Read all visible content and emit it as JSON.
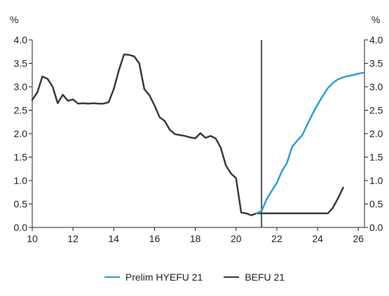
{
  "chart_data": {
    "type": "line",
    "title": "",
    "xlabel": "",
    "ylabel_left": "%",
    "ylabel_right": "%",
    "xlim": [
      10,
      26.3
    ],
    "ylim": [
      0,
      4
    ],
    "x_ticks": [
      10,
      12,
      14,
      16,
      18,
      20,
      22,
      24,
      26
    ],
    "y_ticks": [
      0.0,
      0.5,
      1.0,
      1.5,
      2.0,
      2.5,
      3.0,
      3.5,
      4.0
    ],
    "x_tick_labels": [
      "10",
      "12",
      "14",
      "16",
      "18",
      "20",
      "22",
      "24",
      "26"
    ],
    "y_tick_labels": [
      "0.0",
      "0.5",
      "1.0",
      "1.5",
      "2.0",
      "2.5",
      "3.0",
      "3.5",
      "4.0"
    ],
    "grid": false,
    "vertical_marker_x": 21.25,
    "legend_position": "bottom-center",
    "series": [
      {
        "name": "Prelim HYEFU 21",
        "color": "#2a9fd6",
        "x": [
          21.0,
          21.25,
          21.5,
          21.75,
          22.0,
          22.25,
          22.5,
          22.75,
          23.0,
          23.25,
          23.5,
          23.75,
          24.0,
          24.25,
          24.5,
          24.75,
          25.0,
          25.25,
          25.5,
          25.75,
          26.0,
          26.25
        ],
        "values": [
          0.3,
          0.35,
          0.6,
          0.78,
          0.95,
          1.2,
          1.38,
          1.72,
          1.85,
          1.97,
          2.2,
          2.42,
          2.62,
          2.8,
          2.97,
          3.08,
          3.16,
          3.2,
          3.23,
          3.25,
          3.28,
          3.3
        ]
      },
      {
        "name": "BEFU 21",
        "color": "#3a3a3a",
        "x": [
          10.0,
          10.25,
          10.5,
          10.75,
          11.0,
          11.25,
          11.5,
          11.75,
          12.0,
          12.25,
          12.5,
          12.75,
          13.0,
          13.25,
          13.5,
          13.75,
          14.0,
          14.25,
          14.5,
          14.75,
          15.0,
          15.25,
          15.5,
          15.75,
          16.0,
          16.25,
          16.5,
          16.75,
          17.0,
          17.25,
          17.5,
          17.75,
          18.0,
          18.25,
          18.5,
          18.75,
          19.0,
          19.25,
          19.5,
          19.75,
          20.0,
          20.25,
          20.5,
          20.75,
          21.0,
          21.25,
          21.5,
          21.75,
          22.0,
          22.25,
          22.5,
          22.75,
          23.0,
          23.25,
          23.5,
          23.75,
          24.0,
          24.25,
          24.5,
          24.75,
          25.0,
          25.25
        ],
        "values": [
          2.72,
          2.88,
          3.22,
          3.17,
          3.0,
          2.65,
          2.83,
          2.7,
          2.73,
          2.64,
          2.65,
          2.64,
          2.65,
          2.64,
          2.64,
          2.67,
          2.95,
          3.35,
          3.69,
          3.68,
          3.65,
          3.5,
          2.95,
          2.82,
          2.6,
          2.35,
          2.27,
          2.08,
          1.99,
          1.97,
          1.95,
          1.92,
          1.9,
          2.01,
          1.91,
          1.95,
          1.9,
          1.7,
          1.32,
          1.15,
          1.05,
          0.32,
          0.3,
          0.26,
          0.3,
          0.3,
          0.3,
          0.3,
          0.3,
          0.3,
          0.3,
          0.3,
          0.3,
          0.3,
          0.3,
          0.3,
          0.3,
          0.3,
          0.3,
          0.42,
          0.62,
          0.85
        ]
      }
    ]
  }
}
